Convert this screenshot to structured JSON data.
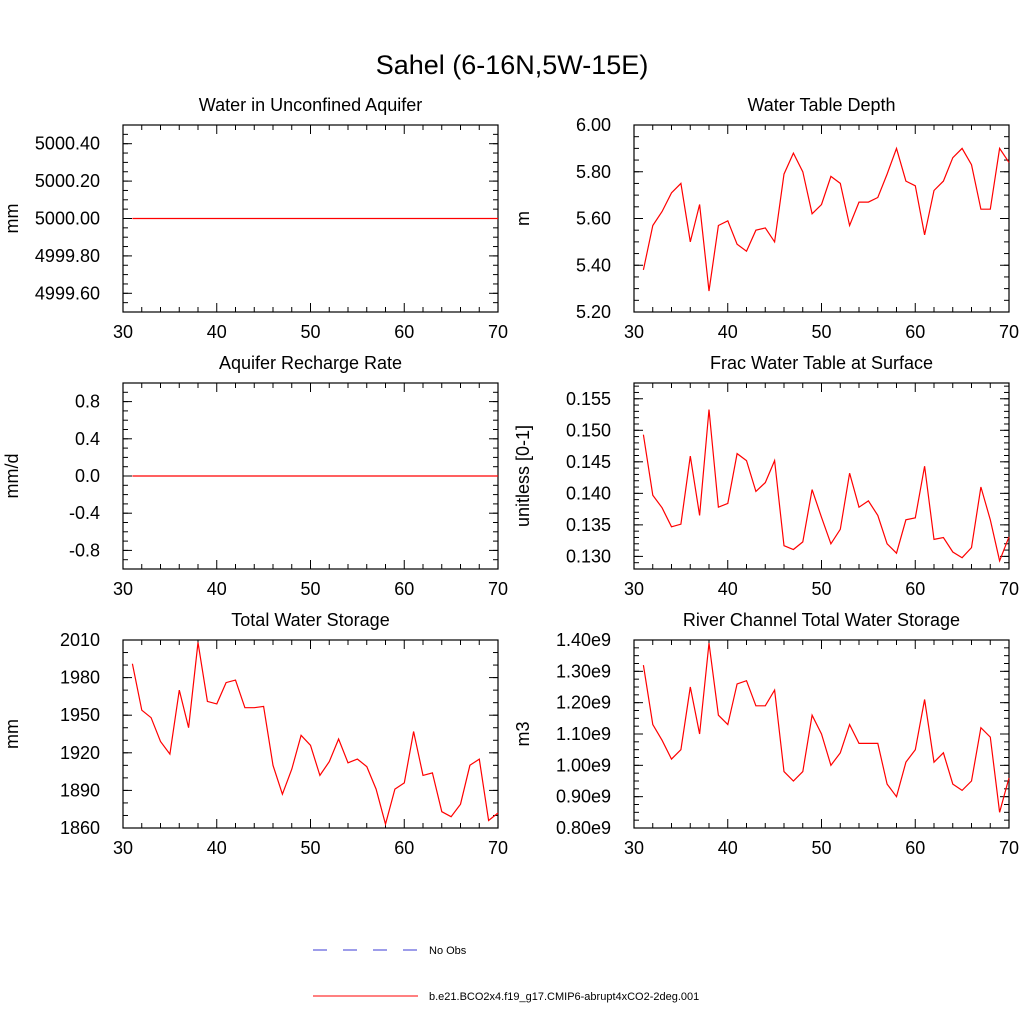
{
  "page_title": "Sahel (6-16N,5W-15E)",
  "colors": {
    "model_line": "#ff0000",
    "obs_line": "#3b3bd6",
    "axis": "#000000"
  },
  "legend": [
    {
      "label": "No Obs",
      "style": "dashed",
      "color": "#3b3bd6"
    },
    {
      "label": "b.e21.BCO2x4.f19_g17.CMIP6-abrupt4xCO2-2deg.001",
      "style": "solid",
      "color": "#ff0000"
    }
  ],
  "chart_data": [
    {
      "type": "line",
      "title": "Water in Unconfined Aquifer",
      "ylabel": "mm",
      "xlim": [
        30,
        70
      ],
      "ylim": [
        4999.5,
        5000.5
      ],
      "xticks": [
        30,
        40,
        50,
        60,
        70
      ],
      "xtick_labels": [
        "30",
        "40",
        "50",
        "60",
        "70"
      ],
      "yticks": [
        4999.6,
        4999.8,
        5000.0,
        5000.2,
        5000.4
      ],
      "ytick_labels": [
        "4999.60",
        "4999.80",
        "5000.00",
        "5000.20",
        "5000.40"
      ],
      "yminor": 0.05,
      "series": [
        {
          "name": "b.e21.BCO2x4.f19_g17.CMIP6-abrupt4xCO2-2deg.001",
          "x": [
            31,
            32,
            33,
            34,
            35,
            36,
            37,
            38,
            39,
            40,
            41,
            42,
            43,
            44,
            45,
            46,
            47,
            48,
            49,
            50,
            51,
            52,
            53,
            54,
            55,
            56,
            57,
            58,
            59,
            60,
            61,
            62,
            63,
            64,
            65,
            66,
            67,
            68,
            69,
            70
          ],
          "values": [
            5000,
            5000,
            5000,
            5000,
            5000,
            5000,
            5000,
            5000,
            5000,
            5000,
            5000,
            5000,
            5000,
            5000,
            5000,
            5000,
            5000,
            5000,
            5000,
            5000,
            5000,
            5000,
            5000,
            5000,
            5000,
            5000,
            5000,
            5000,
            5000,
            5000,
            5000,
            5000,
            5000,
            5000,
            5000,
            5000,
            5000,
            5000,
            5000,
            5000
          ]
        }
      ]
    },
    {
      "type": "line",
      "title": "Water Table Depth",
      "ylabel": "m",
      "xlim": [
        30,
        70
      ],
      "ylim": [
        5.2,
        6.0
      ],
      "xticks": [
        30,
        40,
        50,
        60,
        70
      ],
      "xtick_labels": [
        "30",
        "40",
        "50",
        "60",
        "70"
      ],
      "yticks": [
        5.2,
        5.4,
        5.6,
        5.8,
        6.0
      ],
      "ytick_labels": [
        "5.20",
        "5.40",
        "5.60",
        "5.80",
        "6.00"
      ],
      "yminor": 0.05,
      "series": [
        {
          "name": "b.e21.BCO2x4.f19_g17.CMIP6-abrupt4xCO2-2deg.001",
          "x": [
            31,
            32,
            33,
            34,
            35,
            36,
            37,
            38,
            39,
            40,
            41,
            42,
            43,
            44,
            45,
            46,
            47,
            48,
            49,
            50,
            51,
            52,
            53,
            54,
            55,
            56,
            57,
            58,
            59,
            60,
            61,
            62,
            63,
            64,
            65,
            66,
            67,
            68,
            69,
            70
          ],
          "values": [
            5.38,
            5.57,
            5.63,
            5.71,
            5.75,
            5.5,
            5.66,
            5.29,
            5.57,
            5.59,
            5.49,
            5.46,
            5.55,
            5.56,
            5.5,
            5.79,
            5.88,
            5.8,
            5.62,
            5.66,
            5.78,
            5.75,
            5.57,
            5.67,
            5.67,
            5.69,
            5.79,
            5.9,
            5.76,
            5.74,
            5.53,
            5.72,
            5.76,
            5.86,
            5.9,
            5.83,
            5.64,
            5.64,
            5.9,
            5.84
          ]
        }
      ]
    },
    {
      "type": "line",
      "title": "Aquifer Recharge Rate",
      "ylabel": "mm/d",
      "xlim": [
        30,
        70
      ],
      "ylim": [
        -1.0,
        1.0
      ],
      "xticks": [
        30,
        40,
        50,
        60,
        70
      ],
      "xtick_labels": [
        "30",
        "40",
        "50",
        "60",
        "70"
      ],
      "yticks": [
        -0.8,
        -0.4,
        0.0,
        0.4,
        0.8
      ],
      "ytick_labels": [
        "-0.8",
        "-0.4",
        "0.0",
        "0.4",
        "0.8"
      ],
      "yminor": 0.1,
      "series": [
        {
          "name": "b.e21.BCO2x4.f19_g17.CMIP6-abrupt4xCO2-2deg.001",
          "x": [
            31,
            32,
            33,
            34,
            35,
            36,
            37,
            38,
            39,
            40,
            41,
            42,
            43,
            44,
            45,
            46,
            47,
            48,
            49,
            50,
            51,
            52,
            53,
            54,
            55,
            56,
            57,
            58,
            59,
            60,
            61,
            62,
            63,
            64,
            65,
            66,
            67,
            68,
            69,
            70
          ],
          "values": [
            0,
            0,
            0,
            0,
            0,
            0,
            0,
            0,
            0,
            0,
            0,
            0,
            0,
            0,
            0,
            0,
            0,
            0,
            0,
            0,
            0,
            0,
            0,
            0,
            0,
            0,
            0,
            0,
            0,
            0,
            0,
            0,
            0,
            0,
            0,
            0,
            0,
            0,
            0,
            0
          ]
        }
      ]
    },
    {
      "type": "line",
      "title": "Frac Water Table at Surface",
      "ylabel": "unitless [0-1]",
      "xlim": [
        30,
        70
      ],
      "ylim": [
        0.128,
        0.1575
      ],
      "xticks": [
        30,
        40,
        50,
        60,
        70
      ],
      "xtick_labels": [
        "30",
        "40",
        "50",
        "60",
        "70"
      ],
      "yticks": [
        0.13,
        0.135,
        0.14,
        0.145,
        0.15,
        0.155
      ],
      "ytick_labels": [
        "0.130",
        "0.135",
        "0.140",
        "0.145",
        "0.150",
        "0.155"
      ],
      "yminor": 0.001,
      "series": [
        {
          "name": "b.e21.BCO2x4.f19_g17.CMIP6-abrupt4xCO2-2deg.001",
          "x": [
            31,
            32,
            33,
            34,
            35,
            36,
            37,
            38,
            39,
            40,
            41,
            42,
            43,
            44,
            45,
            46,
            47,
            48,
            49,
            50,
            51,
            52,
            53,
            54,
            55,
            56,
            57,
            58,
            59,
            60,
            61,
            62,
            63,
            64,
            65,
            66,
            67,
            68,
            69,
            70
          ],
          "values": [
            0.1493,
            0.1397,
            0.1377,
            0.1347,
            0.1351,
            0.1459,
            0.1365,
            0.1533,
            0.1378,
            0.1384,
            0.1463,
            0.1452,
            0.1403,
            0.1417,
            0.1452,
            0.1317,
            0.1311,
            0.1323,
            0.1406,
            0.1362,
            0.132,
            0.1343,
            0.1432,
            0.1378,
            0.1388,
            0.1365,
            0.132,
            0.1305,
            0.1358,
            0.1361,
            0.1443,
            0.1327,
            0.133,
            0.1307,
            0.1298,
            0.1314,
            0.141,
            0.1358,
            0.1293,
            0.1331
          ]
        }
      ]
    },
    {
      "type": "line",
      "title": "Total Water Storage",
      "ylabel": "mm",
      "xlim": [
        30,
        70
      ],
      "ylim": [
        1860,
        2010
      ],
      "xticks": [
        30,
        40,
        50,
        60,
        70
      ],
      "xtick_labels": [
        "30",
        "40",
        "50",
        "60",
        "70"
      ],
      "yticks": [
        1860,
        1890,
        1920,
        1950,
        1980,
        2010
      ],
      "ytick_labels": [
        "1860",
        "1890",
        "1920",
        "1950",
        "1980",
        "2010"
      ],
      "yminor": 10,
      "series": [
        {
          "name": "b.e21.BCO2x4.f19_g17.CMIP6-abrupt4xCO2-2deg.001",
          "x": [
            31,
            32,
            33,
            34,
            35,
            36,
            37,
            38,
            39,
            40,
            41,
            42,
            43,
            44,
            45,
            46,
            47,
            48,
            49,
            50,
            51,
            52,
            53,
            54,
            55,
            56,
            57,
            58,
            59,
            60,
            61,
            62,
            63,
            64,
            65,
            66,
            67,
            68,
            69,
            70
          ],
          "values": [
            1991,
            1954,
            1948,
            1929,
            1919,
            1970,
            1940,
            2008,
            1961,
            1959,
            1976,
            1978,
            1956,
            1956,
            1957,
            1910,
            1887,
            1907,
            1934,
            1926,
            1902,
            1913,
            1931,
            1912,
            1915,
            1909,
            1891,
            1863,
            1891,
            1896,
            1937,
            1902,
            1904,
            1873,
            1869,
            1879,
            1910,
            1915,
            1866,
            1872
          ]
        }
      ]
    },
    {
      "type": "line",
      "title": "River Channel Total Water Storage",
      "ylabel": "m3",
      "xlim": [
        30,
        70
      ],
      "ylim": [
        0.8,
        1.4
      ],
      "xticks": [
        30,
        40,
        50,
        60,
        70
      ],
      "xtick_labels": [
        "30",
        "40",
        "50",
        "60",
        "70"
      ],
      "yticks": [
        0.8,
        0.9,
        1.0,
        1.1,
        1.2,
        1.3,
        1.4
      ],
      "ytick_labels": [
        "0.80e9",
        "0.90e9",
        "1.00e9",
        "1.10e9",
        "1.20e9",
        "1.30e9",
        "1.40e9"
      ],
      "yminor": 0.025,
      "series": [
        {
          "name": "b.e21.BCO2x4.f19_g17.CMIP6-abrupt4xCO2-2deg.001",
          "x": [
            31,
            32,
            33,
            34,
            35,
            36,
            37,
            38,
            39,
            40,
            41,
            42,
            43,
            44,
            45,
            46,
            47,
            48,
            49,
            50,
            51,
            52,
            53,
            54,
            55,
            56,
            57,
            58,
            59,
            60,
            61,
            62,
            63,
            64,
            65,
            66,
            67,
            68,
            69,
            70
          ],
          "values": [
            1.32,
            1.13,
            1.08,
            1.02,
            1.05,
            1.25,
            1.1,
            1.39,
            1.16,
            1.13,
            1.26,
            1.27,
            1.19,
            1.19,
            1.24,
            0.98,
            0.95,
            0.98,
            1.16,
            1.1,
            1.0,
            1.04,
            1.13,
            1.07,
            1.07,
            1.07,
            0.94,
            0.9,
            1.01,
            1.05,
            1.21,
            1.01,
            1.04,
            0.94,
            0.92,
            0.95,
            1.12,
            1.09,
            0.85,
            0.96
          ]
        }
      ]
    }
  ]
}
